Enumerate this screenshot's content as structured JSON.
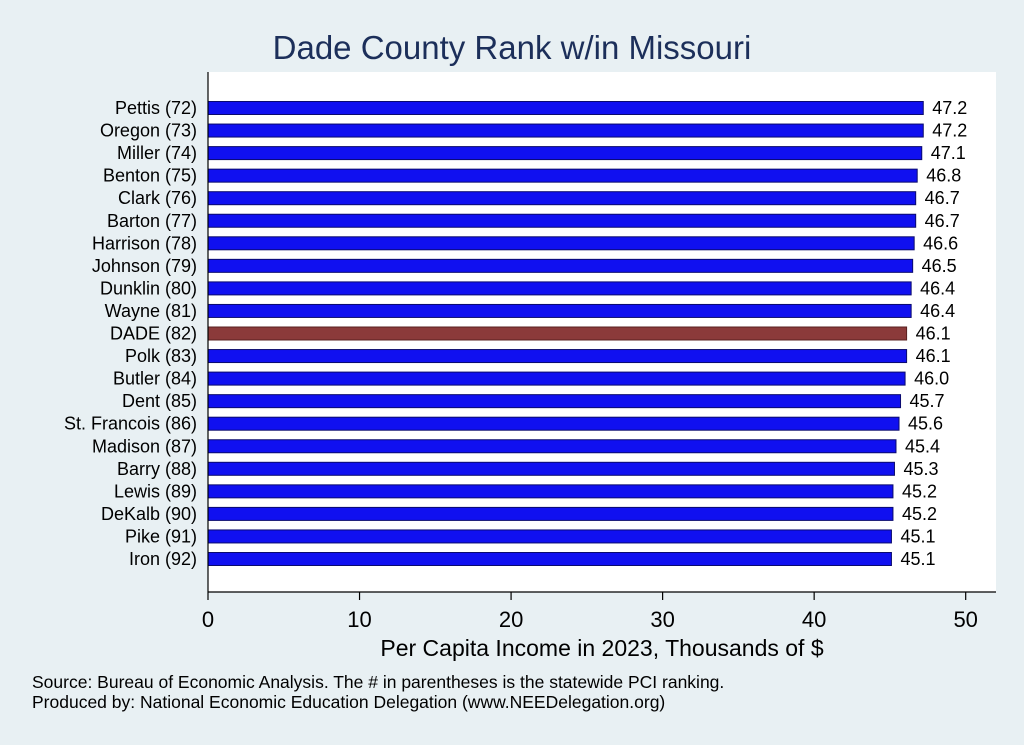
{
  "chart_data": {
    "type": "bar",
    "orientation": "horizontal",
    "title": "Dade County Rank w/in Missouri",
    "xlabel": "Per Capita Income in 2023, Thousands of $",
    "xlim": [
      0,
      52
    ],
    "xticks": [
      0,
      10,
      20,
      30,
      40,
      50
    ],
    "grid": false,
    "categories": [
      "Pettis (72)",
      "Oregon (73)",
      "Miller (74)",
      "Benton (75)",
      "Clark (76)",
      "Barton (77)",
      "Harrison (78)",
      "Johnson (79)",
      "Dunklin (80)",
      "Wayne (81)",
      "DADE (82)",
      "Polk (83)",
      "Butler (84)",
      "Dent (85)",
      "St. Francois (86)",
      "Madison (87)",
      "Barry (88)",
      "Lewis (89)",
      "DeKalb (90)",
      "Pike (91)",
      "Iron (92)"
    ],
    "values": [
      47.2,
      47.2,
      47.1,
      46.8,
      46.7,
      46.7,
      46.6,
      46.5,
      46.4,
      46.4,
      46.1,
      46.1,
      46.0,
      45.7,
      45.6,
      45.4,
      45.3,
      45.2,
      45.2,
      45.1,
      45.1
    ],
    "value_labels": [
      "47.2",
      "47.2",
      "47.1",
      "46.8",
      "46.7",
      "46.7",
      "46.6",
      "46.5",
      "46.4",
      "46.4",
      "46.1",
      "46.1",
      "46.0",
      "45.7",
      "45.6",
      "45.4",
      "45.3",
      "45.2",
      "45.2",
      "45.1",
      "45.1"
    ],
    "highlight_index": 10,
    "colors": {
      "bar": "#1010f0",
      "bar_edge": "#0a0a6e",
      "highlight": "#8b3a3a",
      "highlight_edge": "#5a2020",
      "background": "#e8f0f3",
      "plot_background": "#ffffff",
      "title": "#1c2f5a"
    }
  },
  "notes": {
    "source": "Source: Bureau of Economic Analysis. The # in parentheses is the statewide PCI ranking.",
    "produced_by": "Produced by: National Economic Education Delegation (www.NEEDelegation.org)"
  }
}
